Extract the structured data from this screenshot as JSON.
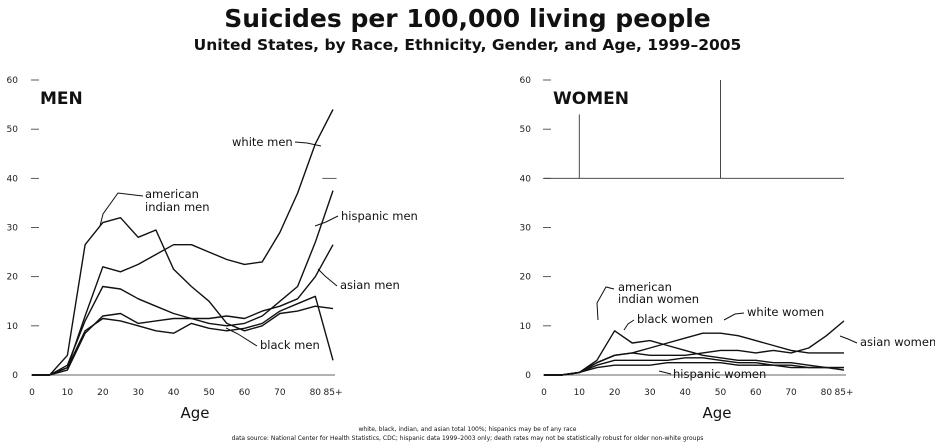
{
  "title": "Suicides per 100,000 living people",
  "subtitle": "United States, by Race, Ethnicity, Gender, and Age, 1999–2005",
  "footnotes": [
    "white, black, indian, and asian total 100%; hispanics may be of any race",
    "data source: National Center for Health Statistics, CDC; hispanic data 1999–2003 only; death rates may not be statistically robust for older non-white groups"
  ],
  "chart_data": [
    {
      "type": "line",
      "panel_label": "MEN",
      "xlabel": "Age",
      "ylabel": "",
      "x": [
        0,
        5,
        10,
        15,
        20,
        25,
        30,
        35,
        40,
        45,
        50,
        55,
        60,
        65,
        70,
        75,
        80,
        85
      ],
      "xticks": [
        "0",
        "10",
        "20",
        "30",
        "40",
        "50",
        "60",
        "70",
        "80",
        "85+"
      ],
      "xtick_values": [
        0,
        10,
        20,
        30,
        40,
        50,
        60,
        70,
        80,
        85
      ],
      "xlim": [
        0,
        87
      ],
      "ylim": [
        0,
        60
      ],
      "yticks": [
        0,
        10,
        20,
        30,
        40,
        50,
        60
      ],
      "grid": false,
      "series": [
        {
          "name": "white men",
          "values": [
            0,
            0,
            1.5,
            12,
            22,
            21,
            22.5,
            24.5,
            26.5,
            26.5,
            25,
            23.5,
            22.5,
            23,
            29,
            37,
            47,
            54
          ]
        },
        {
          "name": "american indian men",
          "values": [
            0,
            0,
            4,
            26.5,
            31,
            32,
            28,
            29.5,
            21.5,
            18,
            15,
            10.5,
            9,
            10,
            12.5,
            13,
            14,
            13.5
          ]
        },
        {
          "name": "hispanic men",
          "values": [
            0,
            0,
            2,
            11,
            18,
            17.5,
            15.5,
            14,
            12.5,
            11.5,
            10.5,
            10,
            10.5,
            12,
            15,
            18,
            27,
            37.5
          ]
        },
        {
          "name": "asian men",
          "values": [
            0,
            0,
            1,
            8.5,
            12,
            12.5,
            10.5,
            11,
            11.5,
            11.5,
            11.5,
            12,
            11.5,
            13,
            14,
            15.5,
            20,
            26.5
          ]
        },
        {
          "name": "black men",
          "values": [
            0,
            0,
            1.5,
            9,
            11.5,
            11,
            10,
            9,
            8.5,
            10.5,
            9.5,
            9,
            9.5,
            10.5,
            13,
            14.5,
            16,
            3
          ]
        }
      ],
      "labels": [
        "white men",
        "american indian men",
        "hispanic men",
        "asian men",
        "black men"
      ]
    },
    {
      "type": "line",
      "panel_label": "WOMEN",
      "xlabel": "Age",
      "ylabel": "",
      "x": [
        0,
        5,
        10,
        15,
        20,
        25,
        30,
        35,
        40,
        45,
        50,
        55,
        60,
        65,
        70,
        75,
        80,
        85
      ],
      "xticks": [
        "0",
        "10",
        "20",
        "30",
        "40",
        "50",
        "60",
        "70",
        "80",
        "85+"
      ],
      "xtick_values": [
        0,
        10,
        20,
        30,
        40,
        50,
        60,
        70,
        80,
        85
      ],
      "xlim": [
        0,
        87
      ],
      "ylim": [
        0,
        60
      ],
      "yticks": [
        0,
        10,
        20,
        30,
        40,
        50,
        60
      ],
      "grid": false,
      "series": [
        {
          "name": "american indian women",
          "values": [
            0,
            0,
            0.5,
            3,
            9,
            6.5,
            7,
            6,
            5,
            4,
            3.5,
            3,
            3,
            2.5,
            2.5,
            2,
            1.5,
            1
          ]
        },
        {
          "name": "white women",
          "values": [
            0,
            0,
            0.5,
            2.5,
            4,
            4.5,
            5.5,
            6.5,
            7.5,
            8.5,
            8.5,
            8,
            7,
            6,
            5,
            4.5,
            4.5,
            4.5
          ]
        },
        {
          "name": "asian women",
          "values": [
            0,
            0,
            0.5,
            2.5,
            4,
            4.5,
            4,
            4,
            4,
            4.5,
            5,
            5,
            4.5,
            5,
            4.5,
            5.5,
            8,
            11
          ]
        },
        {
          "name": "black women",
          "values": [
            0,
            0,
            0.5,
            2,
            3,
            3,
            3,
            3,
            3.5,
            3.5,
            3,
            2.5,
            2.5,
            2,
            1.5,
            1.5,
            1.5,
            1.5
          ]
        },
        {
          "name": "hispanic women",
          "values": [
            0,
            0,
            0.5,
            1.5,
            2,
            2,
            2,
            2.5,
            2.5,
            2.5,
            2.5,
            2,
            2,
            2,
            2,
            1.5,
            1.5,
            1.5
          ]
        }
      ],
      "labels": [
        "american indian women",
        "black women",
        "white women",
        "asian women",
        "hispanic women"
      ]
    }
  ]
}
